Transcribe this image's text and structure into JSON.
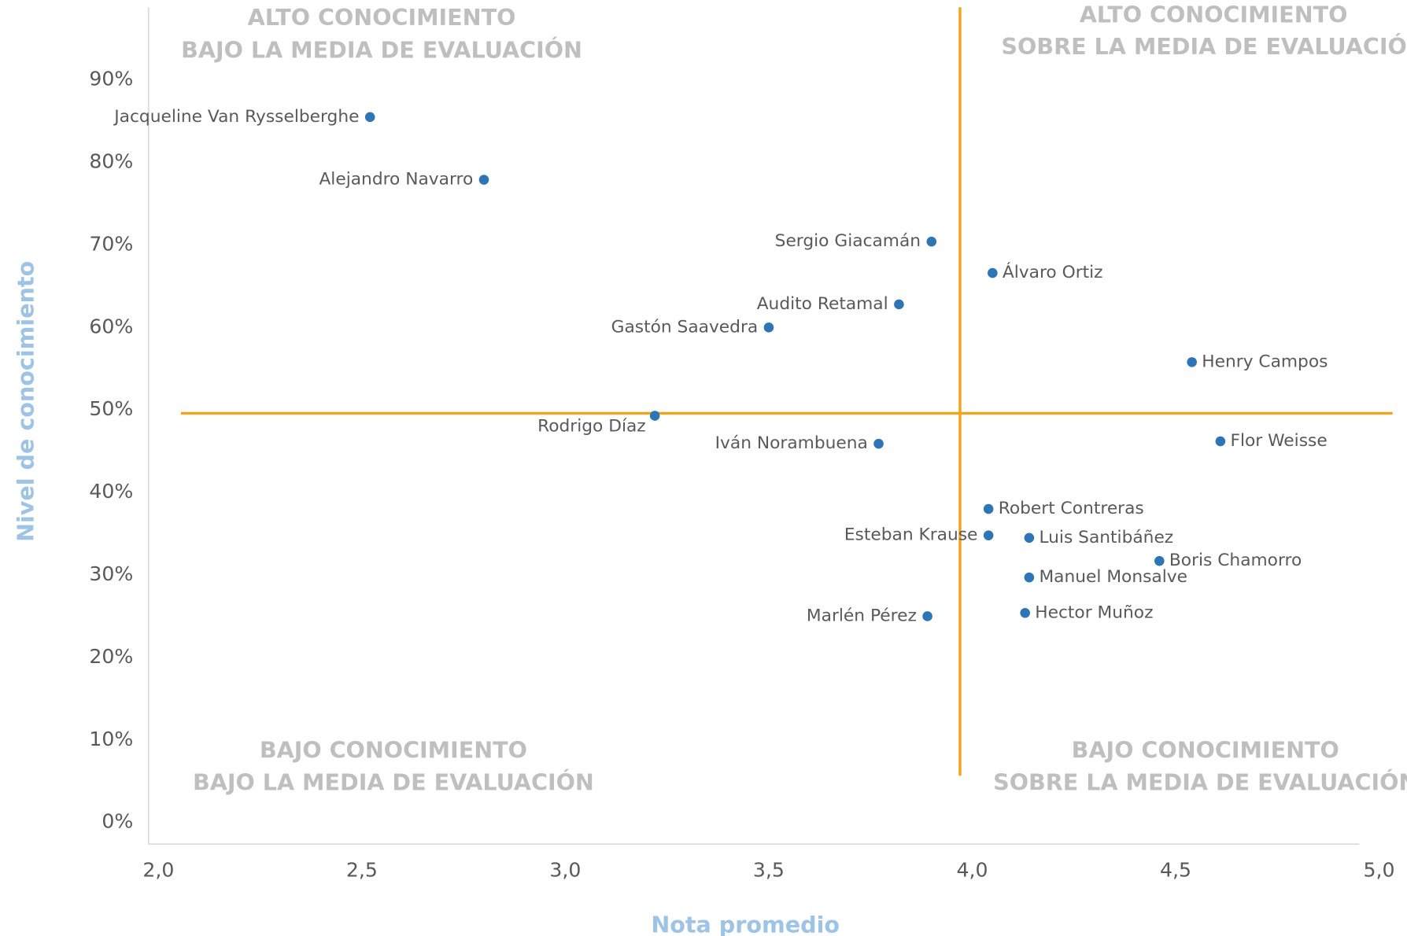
{
  "chart_data": {
    "type": "scatter",
    "x_label": "Nota promedio",
    "y_label": "Nivel de conocimiento",
    "xlim": [
      2.0,
      5.0
    ],
    "ylim": [
      0,
      100
    ],
    "xticks": [
      {
        "value": 2.0,
        "label": "2,0"
      },
      {
        "value": 2.5,
        "label": "2,5"
      },
      {
        "value": 3.0,
        "label": "3,0"
      },
      {
        "value": 3.5,
        "label": "3,5"
      },
      {
        "value": 4.0,
        "label": "4,0"
      },
      {
        "value": 4.5,
        "label": "4,5"
      },
      {
        "value": 5.0,
        "label": "5,0"
      }
    ],
    "yticks": [
      {
        "value": 0,
        "label": "0%"
      },
      {
        "value": 10,
        "label": "10%"
      },
      {
        "value": 20,
        "label": "20%"
      },
      {
        "value": 30,
        "label": "30%"
      },
      {
        "value": 40,
        "label": "40%"
      },
      {
        "value": 50,
        "label": "50%"
      },
      {
        "value": 60,
        "label": "60%"
      },
      {
        "value": 70,
        "label": "70%"
      },
      {
        "value": 80,
        "label": "80%"
      },
      {
        "value": 90,
        "label": "90%"
      }
    ],
    "grid": false,
    "color": "#2e75b6",
    "reference_color": "#f4a41c",
    "mean_x": 3.97,
    "mean_y": 49.6,
    "quadrants": {
      "top_left": [
        "ALTO CONOCIMIENTO",
        "BAJO LA MEDIA DE EVALUACIÓN"
      ],
      "top_right": [
        "ALTO CONOCIMIENTO",
        "SOBRE LA MEDIA DE EVALUACIÓN"
      ],
      "bottom_left": [
        "BAJO CONOCIMIENTO",
        "BAJO LA MEDIA DE EVALUACIÓN"
      ],
      "bottom_right": [
        "BAJO CONOCIMIENTO",
        "SOBRE LA MEDIA DE EVALUACIÓN"
      ]
    },
    "labels": [
      "Jacqueline Van Rysselberghe",
      "Alejandro Navarro",
      "Sergio Giacamán",
      "Álvaro Ortiz",
      "Audito Retamal",
      "Gastón Saavedra",
      "Henry Campos",
      "Rodrigo Díaz",
      "Iván Norambuena",
      "Flor Weisse",
      "Robert Contreras",
      "Esteban Krause",
      "Luis Santibáñez",
      "Boris Chamorro",
      "Manuel Monsalve",
      "Hector Muñoz",
      "Marlén Pérez"
    ],
    "label_positions": [
      "left",
      "left",
      "left",
      "right",
      "left",
      "left",
      "right",
      "below-left",
      "left",
      "right",
      "right",
      "left",
      "right",
      "right",
      "right",
      "right",
      "left"
    ],
    "x": [
      2.52,
      2.8,
      3.9,
      4.05,
      3.82,
      3.5,
      4.54,
      3.22,
      3.77,
      4.61,
      4.04,
      4.04,
      4.14,
      4.46,
      4.14,
      4.13,
      3.89
    ],
    "values": [
      85.5,
      77.9,
      70.4,
      66.6,
      62.8,
      60.0,
      55.8,
      49.3,
      45.9,
      46.2,
      38.0,
      34.8,
      34.5,
      31.7,
      29.7,
      25.4,
      25.0
    ]
  }
}
